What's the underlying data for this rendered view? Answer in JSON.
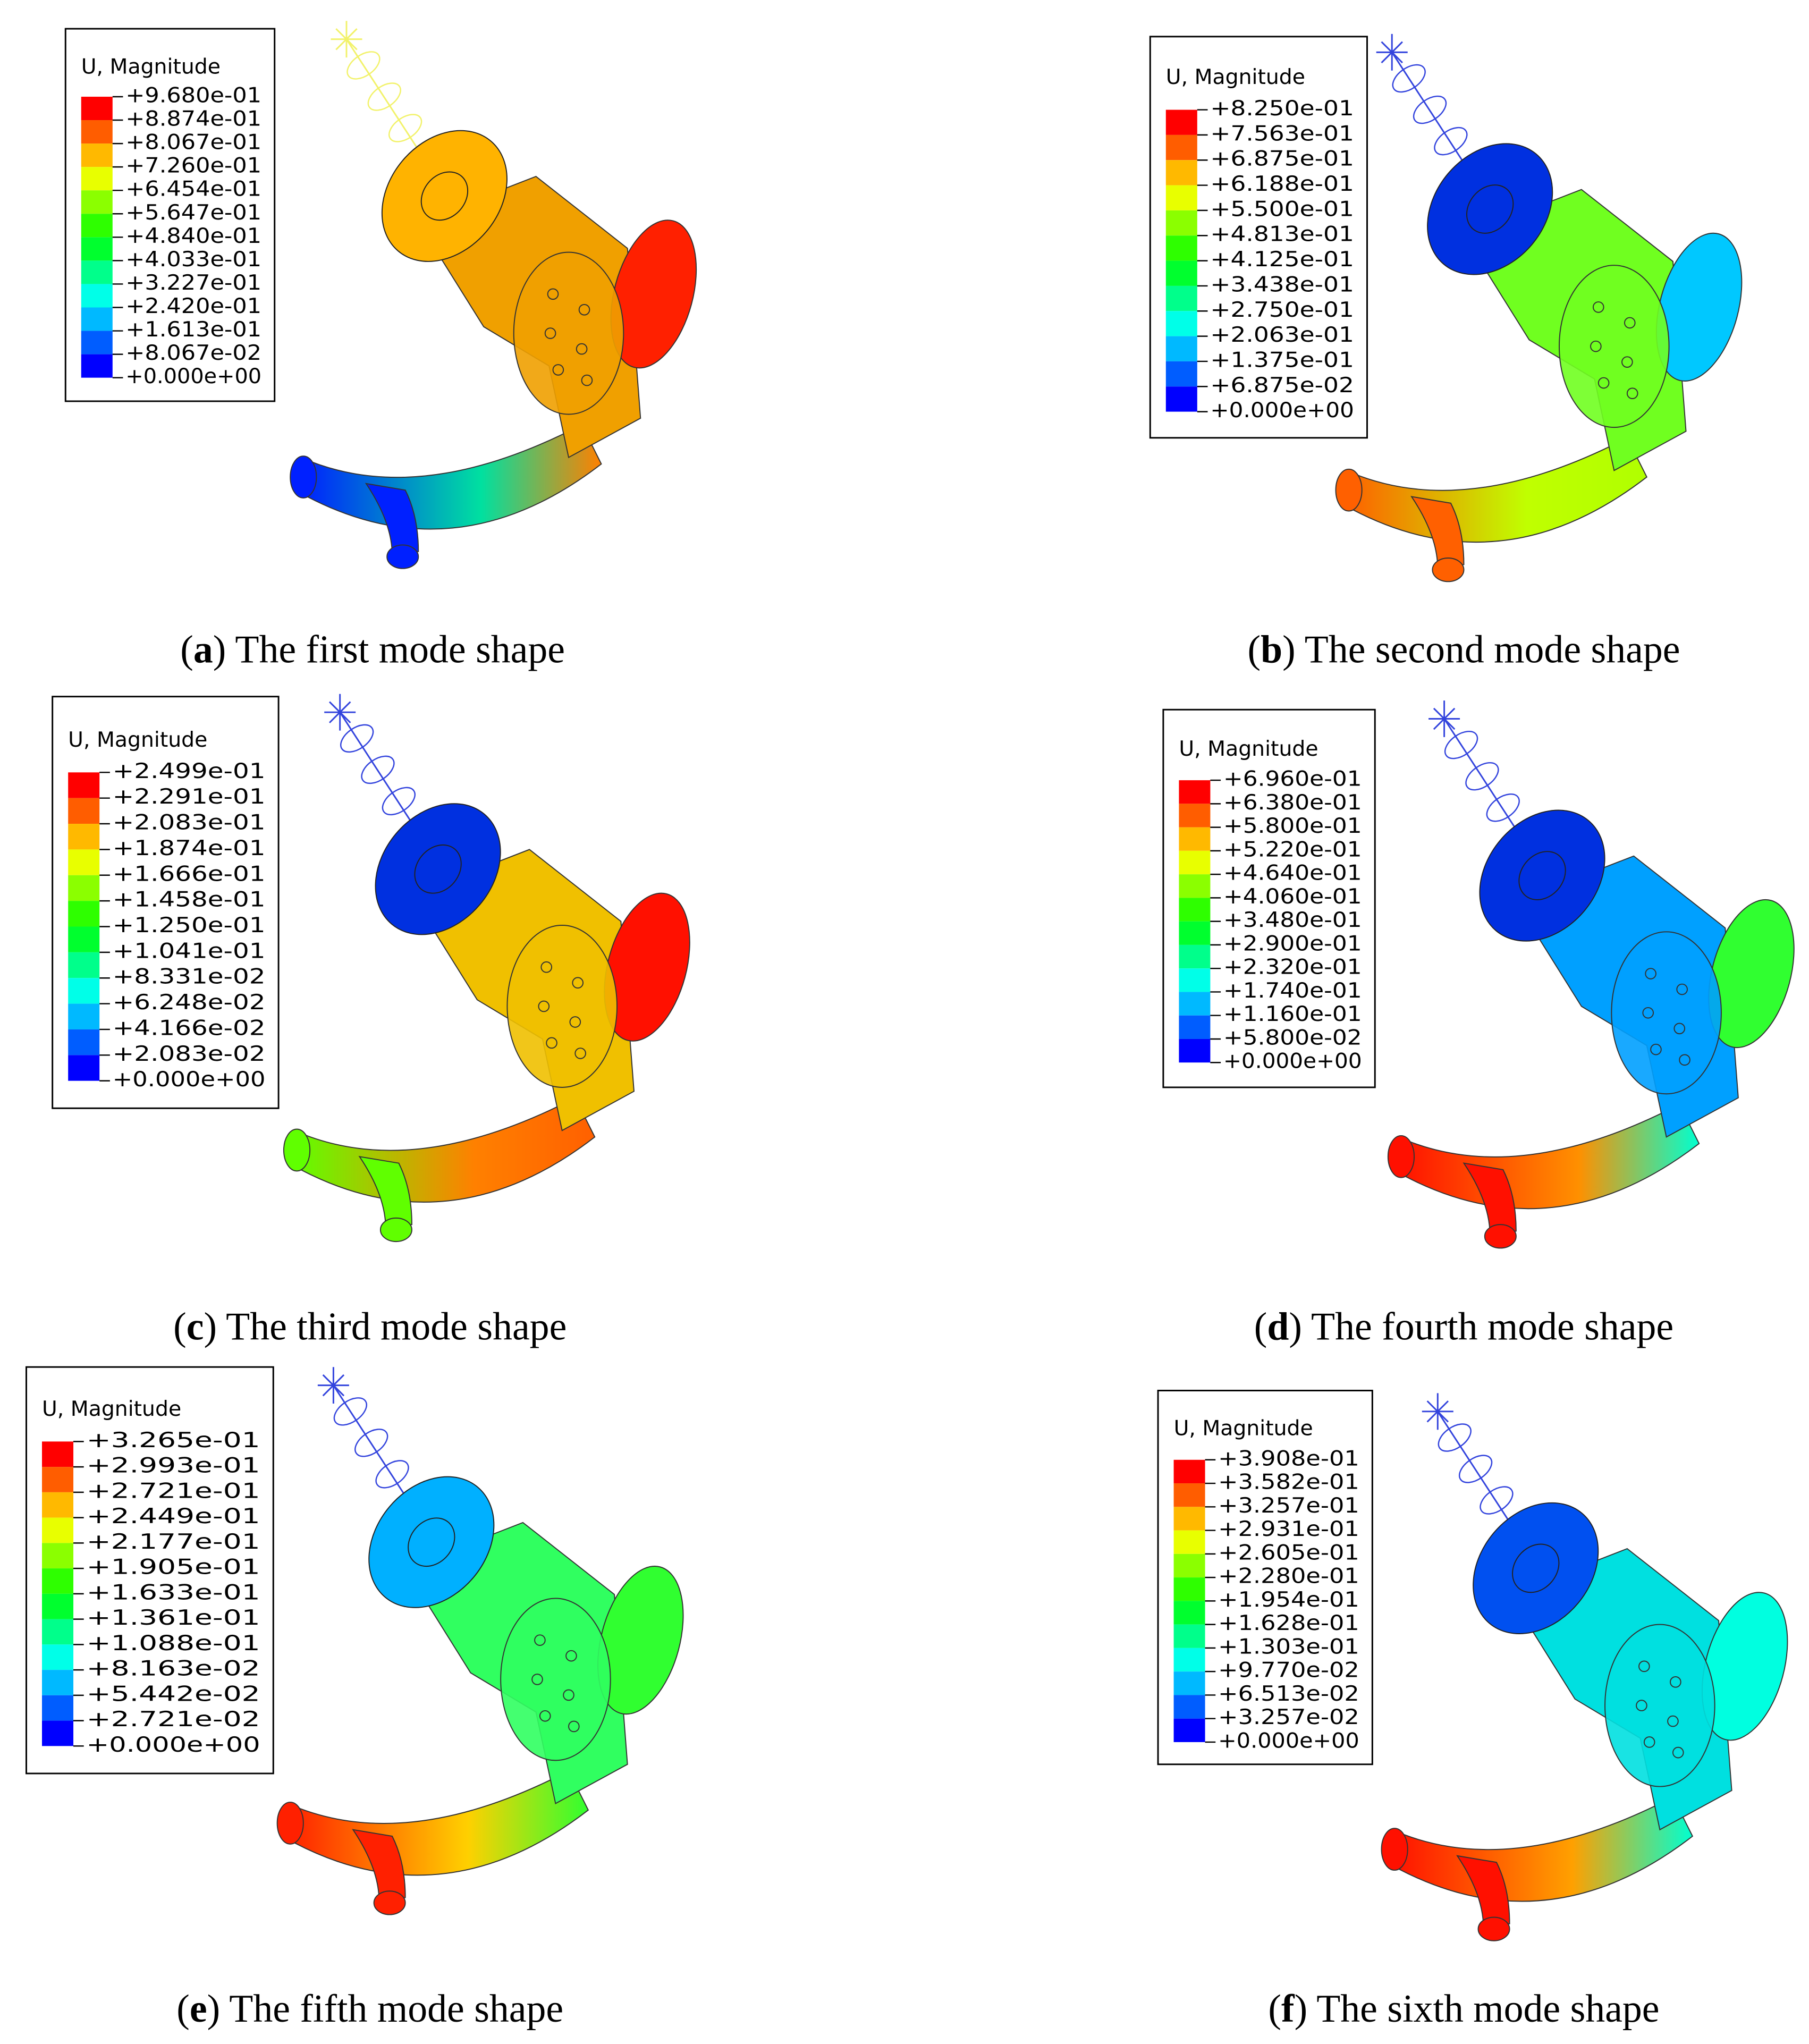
{
  "legend_colors": [
    "#ff0000",
    "#ff5d00",
    "#ffb900",
    "#e8ff00",
    "#8bff00",
    "#2eff00",
    "#00ff2e",
    "#00ff8b",
    "#00ffe8",
    "#00b9ff",
    "#005dff",
    "#0000ff"
  ],
  "panels": [
    {
      "legend_title": "U, Magnitude",
      "labels": [
        "+9.680e-01",
        "+8.874e-01",
        "+8.067e-01",
        "+7.260e-01",
        "+6.454e-01",
        "+5.647e-01",
        "+4.840e-01",
        "+4.033e-01",
        "+3.227e-01",
        "+2.420e-01",
        "+1.613e-01",
        "+8.067e-02",
        "+0.000e+00"
      ],
      "caption": [
        "(",
        "a",
        ") The first mode shape"
      ]
    },
    {
      "legend_title": "U, Magnitude",
      "labels": [
        "+8.250e-01",
        "+7.563e-01",
        "+6.875e-01",
        "+6.188e-01",
        "+5.500e-01",
        "+4.813e-01",
        "+4.125e-01",
        "+3.438e-01",
        "+2.750e-01",
        "+2.063e-01",
        "+1.375e-01",
        "+6.875e-02",
        "+0.000e+00"
      ],
      "caption": [
        "(",
        "b",
        ") The second mode shape"
      ]
    },
    {
      "legend_title": "U, Magnitude",
      "labels": [
        "+2.499e-01",
        "+2.291e-01",
        "+2.083e-01",
        "+1.874e-01",
        "+1.666e-01",
        "+1.458e-01",
        "+1.250e-01",
        "+1.041e-01",
        "+8.331e-02",
        "+6.248e-02",
        "+4.166e-02",
        "+2.083e-02",
        "+0.000e+00"
      ],
      "caption": [
        "(",
        "c",
        ") The third mode shape"
      ]
    },
    {
      "legend_title": "U, Magnitude",
      "labels": [
        "+6.960e-01",
        "+6.380e-01",
        "+5.800e-01",
        "+5.220e-01",
        "+4.640e-01",
        "+4.060e-01",
        "+3.480e-01",
        "+2.900e-01",
        "+2.320e-01",
        "+1.740e-01",
        "+1.160e-01",
        "+5.800e-02",
        "+0.000e+00"
      ],
      "caption": [
        "(",
        "d",
        ") The fourth mode shape"
      ]
    },
    {
      "legend_title": "U, Magnitude",
      "labels": [
        "+3.265e-01",
        "+2.993e-01",
        "+2.721e-01",
        "+2.449e-01",
        "+2.177e-01",
        "+1.905e-01",
        "+1.633e-01",
        "+1.361e-01",
        "+1.088e-01",
        "+8.163e-02",
        "+5.442e-02",
        "+2.721e-02",
        "+0.000e+00"
      ],
      "caption": [
        "(",
        "e",
        ") The fifth mode shape"
      ]
    },
    {
      "legend_title": "U, Magnitude",
      "labels": [
        "+3.908e-01",
        "+3.582e-01",
        "+3.257e-01",
        "+2.931e-01",
        "+2.605e-01",
        "+2.280e-01",
        "+1.954e-01",
        "+1.628e-01",
        "+1.303e-01",
        "+9.770e-02",
        "+6.513e-02",
        "+3.257e-02",
        "+0.000e+00"
      ],
      "caption": [
        "(",
        "f",
        ") The sixth mode shape"
      ]
    }
  ]
}
